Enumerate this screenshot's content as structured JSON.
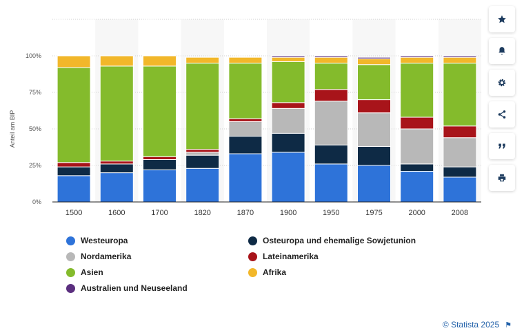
{
  "chart_data": {
    "type": "bar",
    "stacked": true,
    "percent": true,
    "title": "",
    "xlabel": "",
    "ylabel": "Anteil am BIP",
    "ylim": [
      0,
      100
    ],
    "yticks": [
      "0%",
      "25%",
      "50%",
      "75%",
      "100%"
    ],
    "grid": true,
    "legend_position": "bottom",
    "categories": [
      "1500",
      "1600",
      "1700",
      "1820",
      "1870",
      "1900",
      "1950",
      "1975",
      "2000",
      "2008"
    ],
    "series": [
      {
        "name": "Westeuropa",
        "color": "#2e73d9",
        "values": [
          18,
          20,
          22,
          23,
          33,
          34,
          26,
          25,
          21,
          17
        ]
      },
      {
        "name": "Osteuropa und ehemalige Sowjetunion",
        "color": "#0e2a45",
        "values": [
          6,
          6,
          7,
          9,
          12,
          13,
          13,
          13,
          5,
          7
        ]
      },
      {
        "name": "Nordamerika",
        "color": "#b8b8b8",
        "values": [
          0,
          0,
          0,
          2,
          10,
          17,
          30,
          23,
          24,
          20
        ]
      },
      {
        "name": "Lateinamerika",
        "color": "#a8141a",
        "values": [
          3,
          2,
          2,
          2,
          2,
          4,
          8,
          9,
          8,
          8
        ]
      },
      {
        "name": "Asien",
        "color": "#84bb2c",
        "values": [
          65,
          65,
          62,
          59,
          38,
          28,
          18,
          24,
          37,
          43
        ]
      },
      {
        "name": "Afrika",
        "color": "#f2b72a",
        "values": [
          8,
          7,
          7,
          4,
          4,
          3,
          4,
          4,
          4,
          4
        ]
      },
      {
        "name": "Australien und Neuseeland",
        "color": "#5b2f7f",
        "values": [
          0,
          0,
          0,
          0,
          0,
          1,
          1,
          1,
          1,
          1
        ]
      }
    ]
  },
  "legend_order": [
    0,
    1,
    2,
    3,
    4,
    5,
    6
  ],
  "toolbar": {
    "buttons": [
      {
        "name": "favorite-star-icon",
        "icon": "star"
      },
      {
        "name": "notification-bell-icon",
        "icon": "bell"
      },
      {
        "name": "settings-gear-icon",
        "icon": "gear"
      },
      {
        "name": "share-icon",
        "icon": "share"
      },
      {
        "name": "cite-quote-icon",
        "icon": "quote"
      },
      {
        "name": "print-icon",
        "icon": "print"
      }
    ]
  },
  "footer": {
    "credit": "© Statista 2025",
    "flag": "⚑"
  }
}
